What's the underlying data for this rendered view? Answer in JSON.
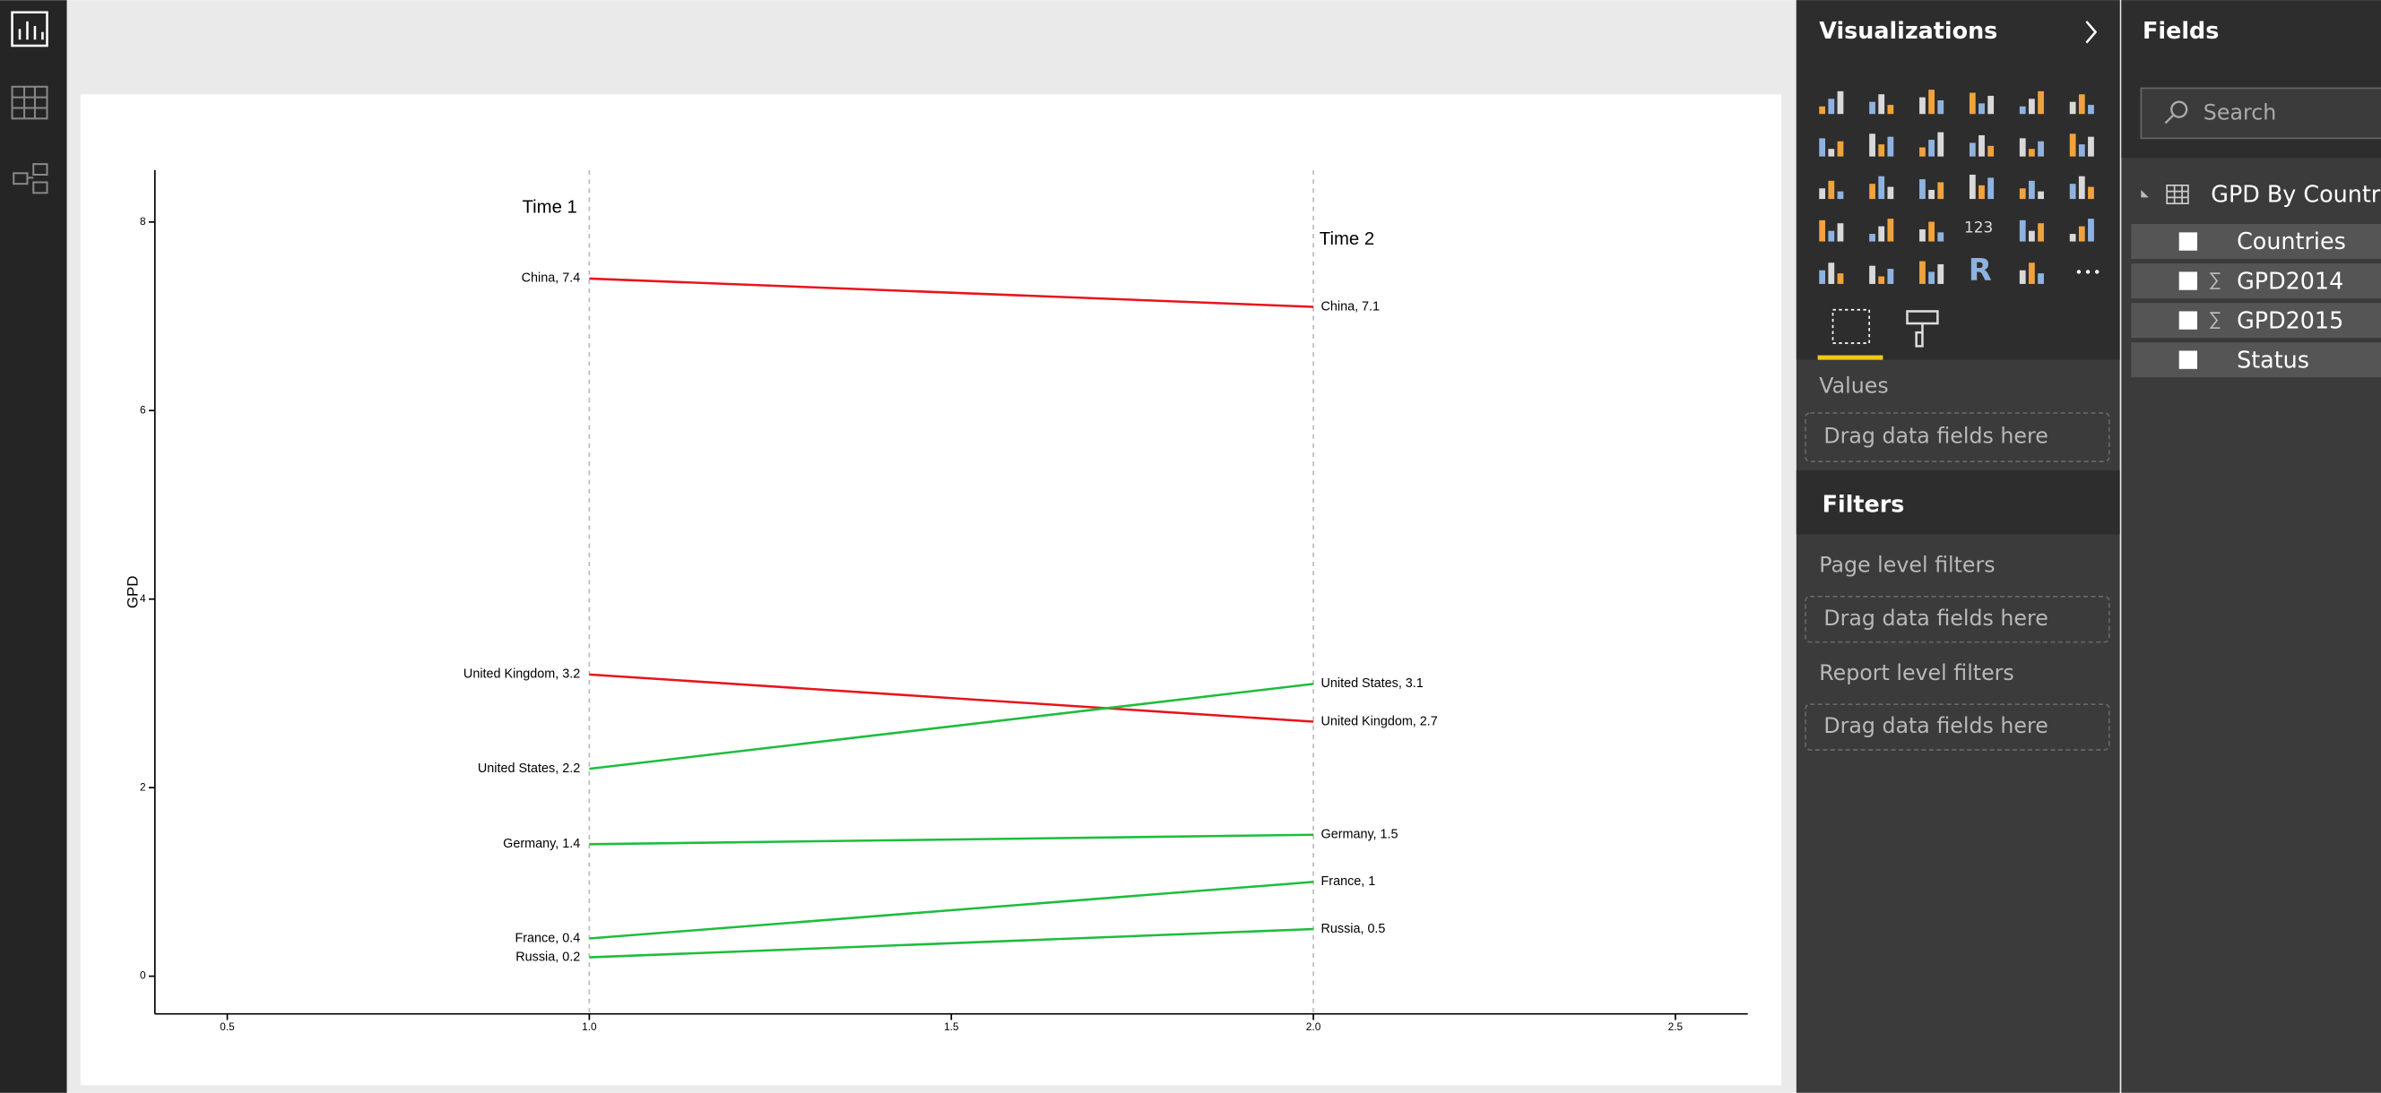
{
  "chart_data": {
    "type": "slope",
    "y_label": "GPD",
    "annotations": [
      "Time 1",
      "Time 2"
    ],
    "x": [
      1,
      2
    ],
    "xlim": [
      0.4,
      2.6
    ],
    "xticks": [
      0.5,
      {
        "value": 1,
        "label": "1.0"
      },
      1.5,
      {
        "value": 2,
        "label": "2.0"
      },
      2.5
    ],
    "ylim": [
      -0.4,
      8.55
    ],
    "yticks": [
      0,
      2,
      4,
      6,
      8
    ],
    "series": [
      {
        "color": "#e8141c",
        "values": [
          7.4,
          7.1
        ],
        "value_labels": [
          "China, 7.4",
          "China, 7.1"
        ]
      },
      {
        "color": "#e8141c",
        "values": [
          3.2,
          2.7
        ],
        "value_labels": [
          "United Kingdom, 3.2",
          "United Kingdom, 2.7"
        ]
      },
      {
        "color": "#1ebd3c",
        "values": [
          2.2,
          3.1
        ],
        "value_labels": [
          "United States, 2.2",
          "United States, 3.1"
        ]
      },
      {
        "color": "#1ebd3c",
        "values": [
          1.4,
          1.5
        ],
        "value_labels": [
          "Germany, 1.4",
          "Germany, 1.5"
        ]
      },
      {
        "color": "#1ebd3c",
        "values": [
          0.4,
          1
        ],
        "value_labels": [
          "France, 0.4",
          "France, 1"
        ]
      },
      {
        "color": "#1ebd3c",
        "values": [
          0.2,
          0.5
        ],
        "value_labels": [
          "Russia, 0.2",
          "Russia, 0.5"
        ]
      }
    ]
  },
  "ui": {
    "viz_title": "Visualizations",
    "icon_texts": [
      "123",
      "R"
    ],
    "values_label": "Values",
    "drop_zones": [
      "Drag data fields here",
      "Drag data fields here",
      "Drag data fields here"
    ],
    "filters_title": "Filters",
    "page_filters": "Page level filters",
    "report_filters": "Report level filters",
    "fields_title": "Fields",
    "search": "Search",
    "table_name": "GPD By Country",
    "fields": [
      "Countries",
      "GPD2014",
      "GPD2015",
      "Status"
    ]
  }
}
